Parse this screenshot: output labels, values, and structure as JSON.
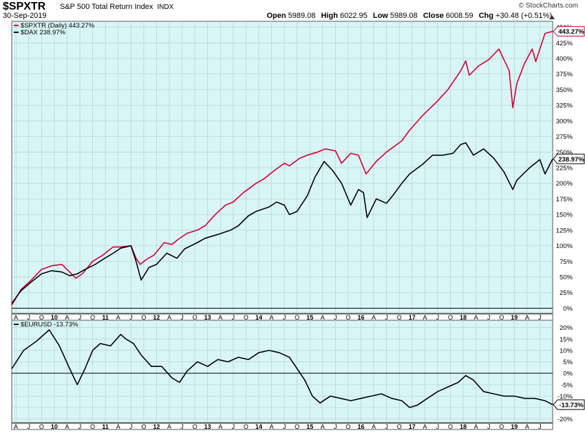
{
  "header": {
    "symbol": "$SPXTR",
    "index_name": "S&P 500 Total Return Index",
    "exchange": "INDX",
    "date": "30-Sep-2019",
    "brand": "© StockCharts.com",
    "open_label": "Open",
    "open": "5989.08",
    "high_label": "High",
    "high": "6022.95",
    "low_label": "Low",
    "low": "5989.08",
    "close_label": "Close",
    "close": "6008.59",
    "chg_label": "Chg",
    "chg": "+30.48 (+0.51%)"
  },
  "colors": {
    "panel_bg": "#d9f5f5",
    "grid": "#b4d2d2",
    "spx": "#cc0033",
    "dax": "#000000",
    "eurusd": "#000000",
    "zero_line": "#000000"
  },
  "chart_data": [
    {
      "type": "line",
      "panel": "main",
      "y_unit": "%",
      "ylim": [
        -5,
        455
      ],
      "y_ticks": [
        0,
        25,
        50,
        75,
        100,
        125,
        150,
        175,
        200,
        225,
        250,
        275,
        300,
        325,
        350,
        375,
        400,
        425,
        450
      ],
      "grid": true,
      "legend_position": "top-left",
      "x_range": [
        "2009-01",
        "2019-09"
      ],
      "x_tick_labels": [
        "A",
        "J",
        "O",
        "10",
        "A",
        "J",
        "O",
        "11",
        "A",
        "J",
        "O",
        "12",
        "A",
        "J",
        "O",
        "13",
        "A",
        "J",
        "O",
        "14",
        "A",
        "J",
        "O",
        "15",
        "A",
        "J",
        "O",
        "16",
        "A",
        "J",
        "O",
        "17",
        "A",
        "J",
        "O",
        "18",
        "A",
        "J",
        "O",
        "19",
        "A",
        "J"
      ],
      "series": [
        {
          "name": "$SPXTR (Daily)",
          "legend_label": "$SPXTR (Daily) 443.27%",
          "last_value_label": "443.27%",
          "last_value": 443.27,
          "color": "#cc0033",
          "x": [
            2009.17,
            2009.35,
            2009.55,
            2009.75,
            2009.95,
            2010.15,
            2010.3,
            2010.42,
            2010.55,
            2010.75,
            2010.95,
            2011.15,
            2011.3,
            2011.5,
            2011.6,
            2011.68,
            2011.8,
            2011.95,
            2012.15,
            2012.3,
            2012.42,
            2012.6,
            2012.8,
            2012.95,
            2013.15,
            2013.35,
            2013.5,
            2013.7,
            2013.95,
            2014.1,
            2014.3,
            2014.5,
            2014.6,
            2014.8,
            2014.95,
            2015.15,
            2015.3,
            2015.5,
            2015.62,
            2015.8,
            2015.95,
            2016.1,
            2016.3,
            2016.5,
            2016.8,
            2016.95,
            2017.2,
            2017.5,
            2017.7,
            2017.95,
            2018.05,
            2018.12,
            2018.3,
            2018.5,
            2018.7,
            2018.9,
            2018.97,
            2019.05,
            2019.2,
            2019.35,
            2019.42,
            2019.6,
            2019.75
          ],
          "y": [
            5,
            30,
            45,
            62,
            68,
            70,
            58,
            48,
            55,
            75,
            85,
            98,
            98,
            100,
            80,
            70,
            78,
            85,
            105,
            102,
            110,
            120,
            125,
            132,
            150,
            165,
            170,
            185,
            200,
            207,
            220,
            232,
            228,
            240,
            245,
            250,
            255,
            252,
            232,
            248,
            245,
            215,
            235,
            250,
            268,
            285,
            308,
            332,
            350,
            380,
            396,
            373,
            388,
            398,
            415,
            380,
            321,
            360,
            392,
            415,
            395,
            440,
            443.27
          ]
        },
        {
          "name": "$DAX",
          "legend_label": "$DAX 238.97%",
          "last_value_label": "238.97%",
          "last_value": 238.97,
          "color": "#000000",
          "x": [
            2009.17,
            2009.35,
            2009.55,
            2009.75,
            2009.95,
            2010.15,
            2010.3,
            2010.45,
            2010.6,
            2010.8,
            2010.95,
            2011.15,
            2011.3,
            2011.5,
            2011.6,
            2011.7,
            2011.85,
            2012.0,
            2012.2,
            2012.4,
            2012.55,
            2012.8,
            2012.95,
            2013.2,
            2013.45,
            2013.6,
            2013.8,
            2013.95,
            2014.2,
            2014.35,
            2014.5,
            2014.6,
            2014.75,
            2014.95,
            2015.1,
            2015.28,
            2015.45,
            2015.62,
            2015.8,
            2015.95,
            2016.05,
            2016.12,
            2016.3,
            2016.5,
            2016.62,
            2016.8,
            2016.95,
            2017.2,
            2017.4,
            2017.6,
            2017.8,
            2017.95,
            2018.05,
            2018.2,
            2018.4,
            2018.6,
            2018.8,
            2018.97,
            2019.05,
            2019.3,
            2019.5,
            2019.6,
            2019.75
          ],
          "y": [
            8,
            28,
            42,
            55,
            60,
            58,
            52,
            55,
            62,
            70,
            78,
            88,
            96,
            100,
            75,
            45,
            65,
            70,
            88,
            80,
            95,
            105,
            112,
            118,
            125,
            132,
            148,
            155,
            162,
            170,
            165,
            150,
            155,
            180,
            210,
            235,
            220,
            200,
            165,
            190,
            185,
            145,
            175,
            168,
            180,
            200,
            215,
            230,
            245,
            245,
            248,
            262,
            265,
            245,
            255,
            240,
            218,
            190,
            205,
            225,
            238,
            215,
            238.97
          ]
        }
      ]
    },
    {
      "type": "line",
      "panel": "indicator",
      "y_unit": "%",
      "ylim": [
        -21,
        22
      ],
      "y_ticks": [
        -20,
        -15,
        -10,
        -5,
        0,
        5,
        10,
        15,
        20
      ],
      "zero_line": true,
      "legend_position": "top-left",
      "x_range": [
        "2009-01",
        "2019-09"
      ],
      "x_tick_labels": [
        "A",
        "J",
        "O",
        "10",
        "A",
        "J",
        "O",
        "11",
        "A",
        "J",
        "O",
        "12",
        "A",
        "J",
        "O",
        "13",
        "A",
        "J",
        "O",
        "14",
        "A",
        "J",
        "O",
        "15",
        "A",
        "J",
        "O",
        "16",
        "A",
        "J",
        "O",
        "17",
        "A",
        "J",
        "O",
        "18",
        "A",
        "J",
        "O",
        "19",
        "A",
        "J"
      ],
      "series": [
        {
          "name": "$EURUSD",
          "legend_label": "$EURUSD -13.73%",
          "last_value_label": "-13.73%",
          "last_value": -13.73,
          "color": "#000000",
          "x": [
            2009.17,
            2009.4,
            2009.65,
            2009.9,
            2010.1,
            2010.3,
            2010.45,
            2010.6,
            2010.75,
            2010.9,
            2011.1,
            2011.3,
            2011.4,
            2011.55,
            2011.7,
            2011.9,
            2012.1,
            2012.3,
            2012.45,
            2012.6,
            2012.8,
            2013.0,
            2013.2,
            2013.4,
            2013.6,
            2013.8,
            2014.0,
            2014.2,
            2014.4,
            2014.6,
            2014.75,
            2014.9,
            2015.05,
            2015.2,
            2015.4,
            2015.6,
            2015.8,
            2016.0,
            2016.2,
            2016.4,
            2016.6,
            2016.8,
            2016.95,
            2017.1,
            2017.3,
            2017.5,
            2017.7,
            2017.9,
            2018.05,
            2018.2,
            2018.4,
            2018.6,
            2018.8,
            2019.0,
            2019.2,
            2019.4,
            2019.6,
            2019.75
          ],
          "y": [
            2,
            10,
            14,
            19,
            12,
            2,
            -5,
            2,
            10,
            13,
            12,
            17,
            15,
            13,
            8,
            3,
            3,
            -2,
            -4,
            1,
            5,
            3,
            6,
            5,
            7,
            6,
            9,
            10,
            9,
            7,
            2,
            -3,
            -10,
            -13,
            -10,
            -11,
            -12,
            -11,
            -10,
            -9,
            -11,
            -12,
            -15,
            -14,
            -11,
            -8,
            -6,
            -4,
            -1,
            -3,
            -8,
            -9,
            -10,
            -10,
            -11,
            -11,
            -12,
            -13.73
          ]
        }
      ]
    }
  ]
}
